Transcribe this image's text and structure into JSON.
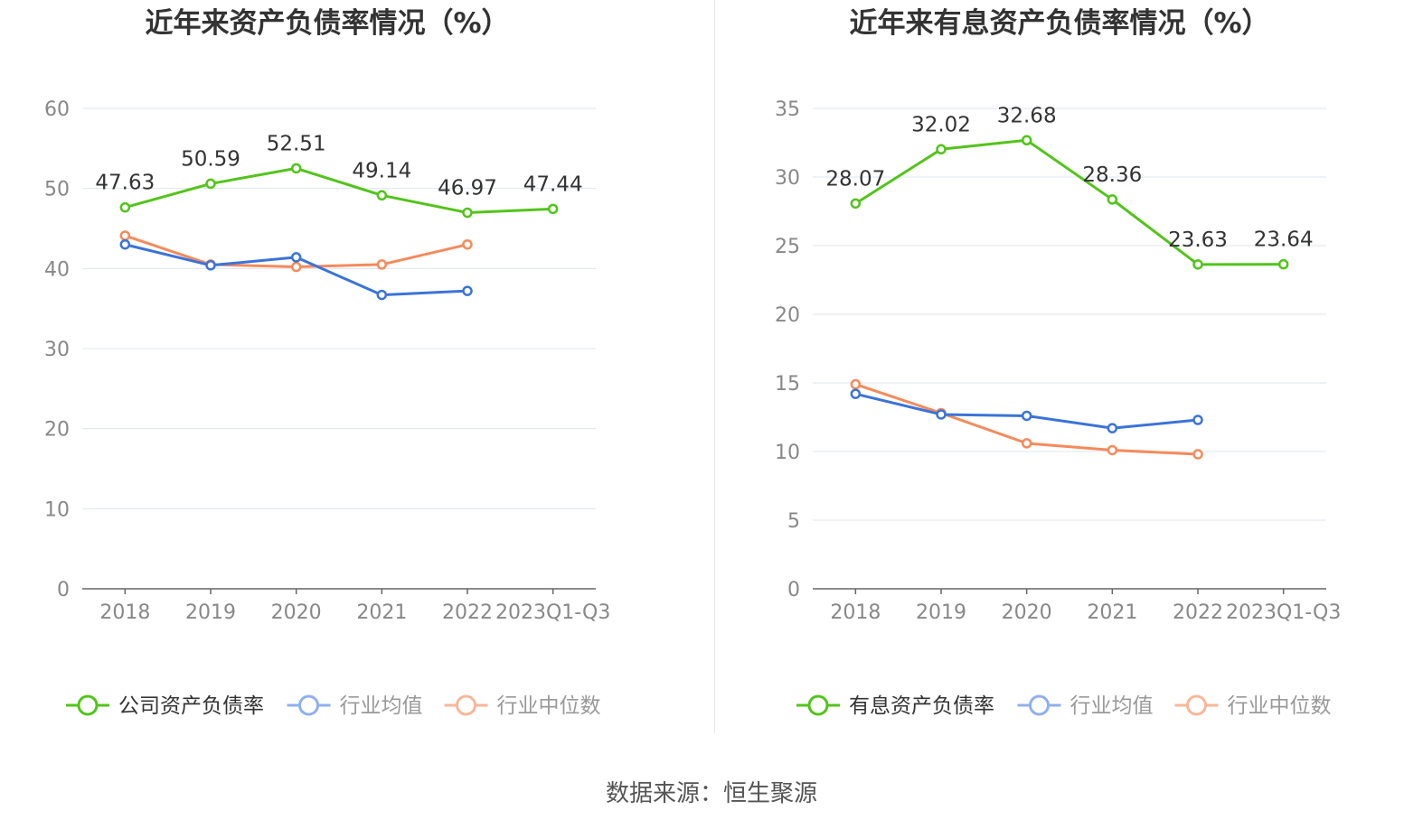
{
  "colors": {
    "company": "#52c41a",
    "avg": "#3b73d9",
    "median": "#f58a5b",
    "avg_legend": "#8fb0ee",
    "median_legend": "#f8b799",
    "grid": "#dde5f2",
    "axis": "#666666",
    "tick": "#888888",
    "label": "#333333"
  },
  "source": "数据来源：恒生聚源",
  "chart_data": [
    {
      "type": "line",
      "title": "近年来资产负债率情况（%）",
      "categories": [
        "2018",
        "2019",
        "2020",
        "2021",
        "2022",
        "2023Q1-Q3"
      ],
      "ylim": [
        0,
        60
      ],
      "yticks": [
        0,
        10,
        20,
        30,
        40,
        50,
        60
      ],
      "grid": true,
      "legend_position": "bottom",
      "series": [
        {
          "key": "company",
          "name": "公司资产负债率",
          "values": [
            47.63,
            50.59,
            52.51,
            49.14,
            46.97,
            47.44
          ],
          "labels": [
            "47.63",
            "50.59",
            "52.51",
            "49.14",
            "46.97",
            "47.44"
          ]
        },
        {
          "key": "avg",
          "name": "行业均值",
          "values": [
            43.0,
            40.4,
            41.4,
            36.7,
            37.2,
            null
          ]
        },
        {
          "key": "median",
          "name": "行业中位数",
          "values": [
            44.1,
            40.5,
            40.2,
            40.5,
            43.0,
            null
          ]
        }
      ]
    },
    {
      "type": "line",
      "title": "近年来有息资产负债率情况（%）",
      "categories": [
        "2018",
        "2019",
        "2020",
        "2021",
        "2022",
        "2023Q1-Q3"
      ],
      "ylim": [
        0,
        35
      ],
      "yticks": [
        0,
        5,
        10,
        15,
        20,
        25,
        30,
        35
      ],
      "grid": true,
      "legend_position": "bottom",
      "series": [
        {
          "key": "company",
          "name": "有息资产负债率",
          "values": [
            28.07,
            32.02,
            32.68,
            28.36,
            23.63,
            23.64
          ],
          "labels": [
            "28.07",
            "32.02",
            "32.68",
            "28.36",
            "23.63",
            "23.64"
          ]
        },
        {
          "key": "avg",
          "name": "行业均值",
          "values": [
            14.2,
            12.7,
            12.6,
            11.7,
            12.3,
            null
          ]
        },
        {
          "key": "median",
          "name": "行业中位数",
          "values": [
            14.9,
            12.8,
            10.6,
            10.1,
            9.8,
            null
          ]
        }
      ]
    }
  ]
}
